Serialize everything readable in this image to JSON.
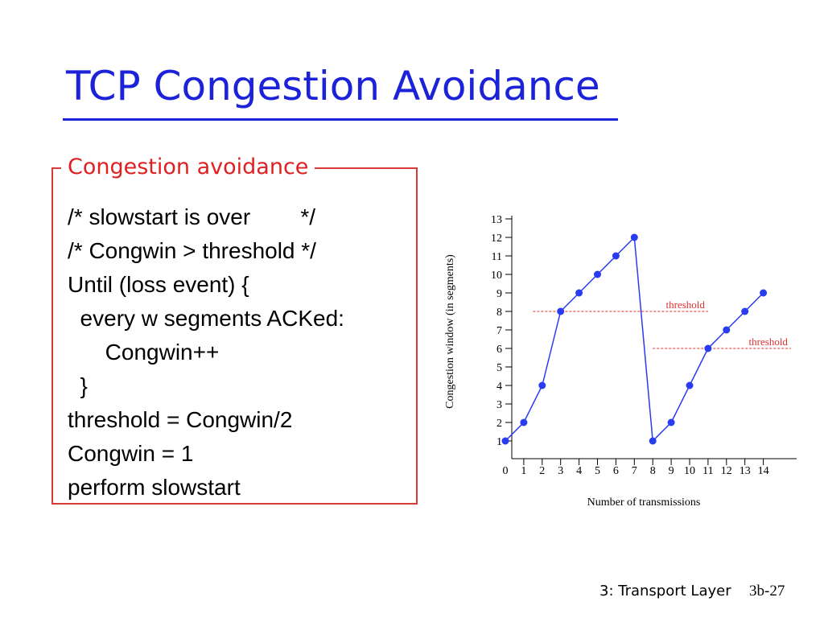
{
  "slide": {
    "title": "TCP Congestion Avoidance",
    "box_title": "Congestion avoidance",
    "code_lines": [
      "/* slowstart is over        */",
      "/* Congwin > threshold */",
      "Until (loss event) {",
      "  every w segments ACKed:",
      "      Congwin++",
      "  }",
      "threshold = Congwin/2",
      "Congwin = 1",
      "perform slowstart"
    ],
    "footer_label": "3: Transport Layer",
    "footer_page": "3b-27"
  },
  "colors": {
    "title": "#1b22d8",
    "box_border": "#d83a3a",
    "box_title": "#e02020",
    "series": "#2a3cf0",
    "threshold": "#e03030"
  },
  "chart_data": {
    "type": "line",
    "xlabel": "Number of transmissions",
    "ylabel": "Congestion window (in segments)",
    "xlim": [
      0,
      14
    ],
    "ylim": [
      1,
      13
    ],
    "x_ticks": [
      0,
      1,
      2,
      3,
      4,
      5,
      6,
      7,
      8,
      9,
      10,
      11,
      12,
      13,
      14
    ],
    "y_ticks": [
      1,
      2,
      3,
      4,
      5,
      6,
      7,
      8,
      9,
      10,
      11,
      12,
      13
    ],
    "grid": false,
    "series": [
      {
        "x": [
          0,
          1,
          2,
          3,
          4,
          5,
          6,
          7,
          8,
          9,
          10,
          11,
          12,
          13,
          14
        ],
        "values": [
          1,
          2,
          4,
          8,
          9,
          10,
          11,
          12,
          1,
          2,
          4,
          6,
          7,
          8,
          9
        ]
      }
    ],
    "annotations": [
      {
        "label": "threshold",
        "y": 8,
        "x_range": [
          1.5,
          11
        ]
      },
      {
        "label": "threshold",
        "y": 6,
        "x_range": [
          8,
          15.5
        ]
      }
    ]
  }
}
